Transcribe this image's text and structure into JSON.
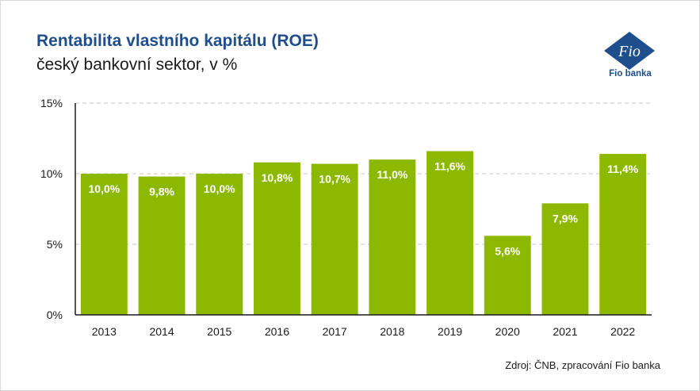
{
  "header": {
    "title": "Rentabilita vlastního kapitálu (ROE)",
    "subtitle": "český bankovní sektor, v %"
  },
  "logo": {
    "mark_text": "Fio",
    "caption": "Fio banka",
    "color": "#1f4e8c"
  },
  "footer": {
    "source": "Zdroj: ČNB, zpracování Fio banka"
  },
  "chart_data": {
    "type": "bar",
    "title": "Rentabilita vlastního kapitálu (ROE)",
    "subtitle": "český bankovní sektor, v %",
    "categories": [
      "2013",
      "2014",
      "2015",
      "2016",
      "2017",
      "2018",
      "2019",
      "2020",
      "2021",
      "2022"
    ],
    "values": [
      10.0,
      9.8,
      10.0,
      10.8,
      10.7,
      11.0,
      11.6,
      5.6,
      7.9,
      11.4
    ],
    "data_labels": [
      "10,0%",
      "9,8%",
      "10,0%",
      "10,8%",
      "10,7%",
      "11,0%",
      "11,6%",
      "5,6%",
      "7,9%",
      "11,4%"
    ],
    "yticks": [
      0,
      5,
      10,
      15
    ],
    "ytick_labels": [
      "0%",
      "5%",
      "10%",
      "15%"
    ],
    "ylim": [
      0,
      15
    ],
    "xlabel": "",
    "ylabel": "",
    "bar_color": "#8cb800",
    "grid": true,
    "legend": "none"
  }
}
